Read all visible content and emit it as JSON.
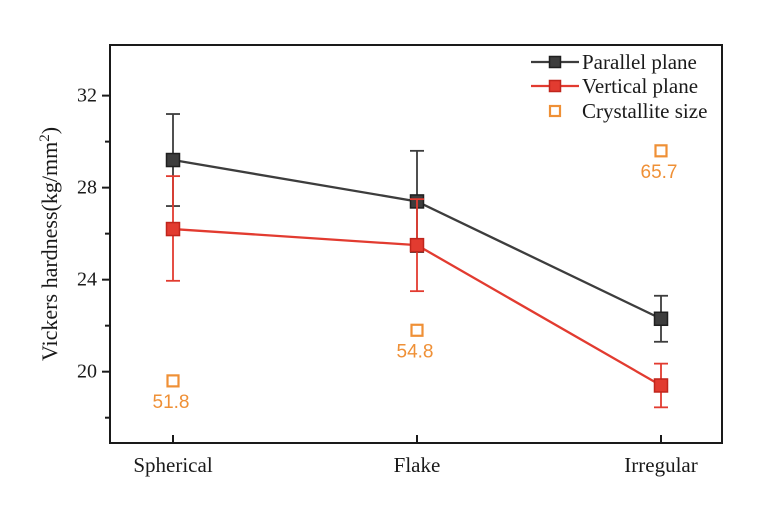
{
  "figure": {
    "background_color": "#ffffff",
    "axis_color": "#1a1a1a",
    "text_color": "#1a1a1a"
  },
  "chart_data": {
    "type": "line",
    "title": "",
    "xlabel": "",
    "ylabel": "Vickers hardness(kg/mm2)",
    "ylabel_parts": {
      "main": "Vickers hardness(kg/mm",
      "sup": "2",
      "close": ")"
    },
    "categories": [
      "Spherical",
      "Flake",
      "Irregular"
    ],
    "ylim": [
      16.9,
      34.2
    ],
    "yticks_major": [
      20,
      24,
      28,
      32
    ],
    "yticks_minor": [
      18,
      22,
      26,
      30
    ],
    "grid": false,
    "legend_position": "top-right-inside",
    "legend_entries": [
      "Parallel plane",
      "Vertical plane",
      "Crystallite size"
    ],
    "series": [
      {
        "name": "Parallel plane",
        "type": "line+markers",
        "marker": "filled-square",
        "color": "#3d3d3d",
        "edge_color": "#1f1f1f",
        "values": [
          29.2,
          27.4,
          22.3
        ],
        "errors_plus": [
          2.0,
          2.2,
          1.0
        ],
        "errors_minus": [
          2.0,
          2.2,
          1.0
        ]
      },
      {
        "name": "Vertical plane",
        "type": "line+markers",
        "marker": "filled-square",
        "color": "#e23b30",
        "edge_color": "#c0251c",
        "values": [
          26.2,
          25.5,
          19.4
        ],
        "errors_plus": [
          2.3,
          2.0,
          0.95
        ],
        "errors_minus": [
          2.25,
          2.0,
          0.95
        ]
      }
    ],
    "scatter_series": {
      "name": "Crystallite size",
      "marker": "open-square",
      "color": "#ef9036",
      "values": [
        19.6,
        21.8,
        29.6
      ],
      "point_labels": [
        "51.8",
        "54.8",
        "65.7"
      ]
    }
  }
}
